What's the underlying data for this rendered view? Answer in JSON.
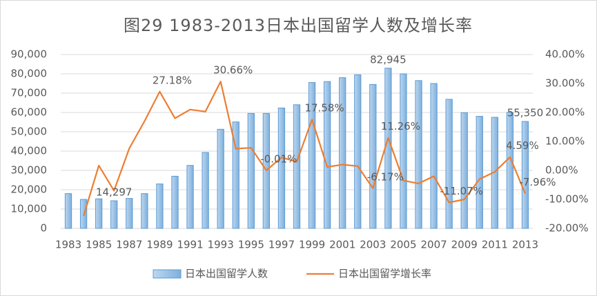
{
  "chart_data": {
    "type": "bar_line",
    "title": "图29  1983-2013日本出国留学人数及增长率",
    "categories": [
      "1983",
      null,
      "1985",
      null,
      "1987",
      null,
      "1989",
      null,
      "1991",
      null,
      "1993",
      null,
      "1995",
      null,
      "1997",
      null,
      "1999",
      null,
      "2001",
      null,
      "2003",
      null,
      "2005",
      null,
      "2007",
      null,
      "2009",
      null,
      "2011",
      null,
      "2013"
    ],
    "series": [
      {
        "name": "日本出国留学人数",
        "type": "bar",
        "color": "#9dc3e6",
        "border": "#5b9bd5",
        "values": [
          18000,
          15000,
          15300,
          14297,
          15500,
          18000,
          23000,
          27000,
          32600,
          39300,
          51300,
          55100,
          59500,
          59500,
          62300,
          64000,
          75500,
          76000,
          78000,
          79500,
          74500,
          82945,
          80000,
          76500,
          75000,
          66800,
          59900,
          58000,
          57500,
          60000,
          55350
        ],
        "value_labels": [
          null,
          null,
          null,
          "14,297",
          null,
          null,
          null,
          null,
          null,
          null,
          null,
          null,
          null,
          null,
          null,
          null,
          null,
          null,
          null,
          null,
          null,
          "82,945",
          null,
          null,
          null,
          null,
          null,
          null,
          null,
          null,
          "55,350"
        ]
      },
      {
        "name": "日本出国留学增长率",
        "type": "line",
        "axis": "y2",
        "color": "#ed7d31",
        "values": [
          null,
          -15.7,
          1.7,
          -7,
          7.6,
          17,
          27.18,
          18,
          21,
          20.3,
          30.66,
          7.5,
          7.8,
          -0.01,
          4.5,
          3,
          17.58,
          1.2,
          2,
          1.5,
          -6.17,
          11.26,
          -3.5,
          -4.5,
          -2,
          -11.07,
          -10,
          -3,
          -0.5,
          4.59,
          -7.96
        ],
        "value_labels": [
          null,
          null,
          null,
          null,
          null,
          null,
          "27.18%",
          null,
          null,
          null,
          "30.66%",
          null,
          null,
          "-0.01%",
          null,
          null,
          "17.58%",
          null,
          null,
          null,
          "-6.17%",
          "11.26%",
          null,
          null,
          null,
          "-11.07%",
          null,
          null,
          null,
          "4.59%",
          "-7.96%"
        ]
      }
    ],
    "ylim": [
      0,
      90000
    ],
    "yticks": [
      0,
      {
        "value": 10000,
        "label": "10,000"
      },
      {
        "value": 20000,
        "label": "20,000"
      },
      {
        "value": 30000,
        "label": "30,000"
      },
      {
        "value": 40000,
        "label": "40,000"
      },
      {
        "value": 50000,
        "label": "50,000"
      },
      {
        "value": 60000,
        "label": "60,000"
      },
      {
        "value": 70000,
        "label": "70,000"
      },
      {
        "value": 80000,
        "label": "80,000"
      },
      {
        "value": 90000,
        "label": "90,000"
      }
    ],
    "y2lim": [
      -20,
      40
    ],
    "y2ticks": [
      {
        "value": -20,
        "label": "-20.00%"
      },
      {
        "value": -10,
        "label": "-10.00%"
      },
      {
        "value": 0,
        "label": "0.00%"
      },
      {
        "value": 10,
        "label": "10.00%"
      },
      {
        "value": 20,
        "label": "20.00%"
      },
      {
        "value": 30,
        "label": "30.00%"
      },
      {
        "value": 40,
        "label": "40.00%"
      }
    ],
    "grid": true,
    "legend": "bottom"
  }
}
